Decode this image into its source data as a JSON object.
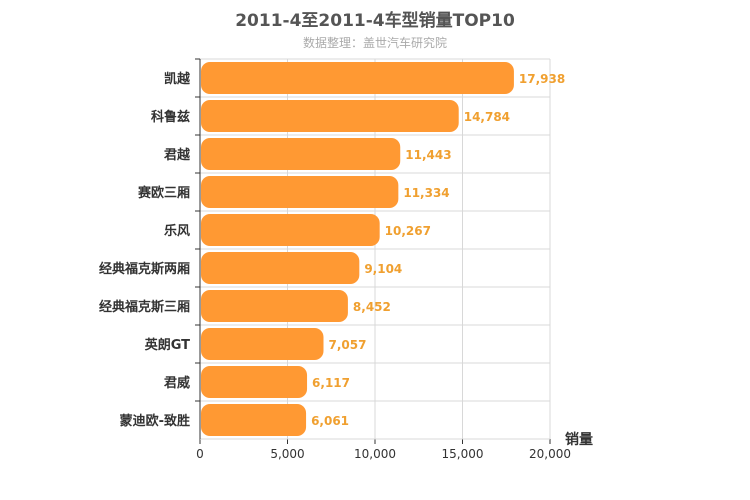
{
  "chart_data": {
    "type": "bar",
    "orientation": "horizontal",
    "title": "2011-4至2011-4车型销量TOP10",
    "subtitle": "数据整理：盖世汽车研究院",
    "categories": [
      "凯越",
      "科鲁兹",
      "君越",
      "赛欧三厢",
      "乐风",
      "经典福克斯两厢",
      "经典福克斯三厢",
      "英朗GT",
      "君威",
      "蒙迪欧-致胜"
    ],
    "values": [
      17938,
      14784,
      11443,
      11334,
      10267,
      9104,
      8452,
      7057,
      6117,
      6061
    ],
    "value_labels": [
      "17,938",
      "14,784",
      "11,443",
      "11,334",
      "10,267",
      "9,104",
      "8,452",
      "7,057",
      "6,117",
      "6,061"
    ],
    "value_axis_label": "销量",
    "xlim": [
      0,
      20000
    ],
    "xticks": [
      0,
      5000,
      10000,
      15000,
      20000
    ],
    "xtick_labels": [
      "0",
      "5,000",
      "10,000",
      "15,000",
      "20,000"
    ],
    "grid": true,
    "colors": {
      "bar": "#ff9933",
      "data_label": "#f0a030",
      "grid": "#d8d8d8",
      "axis": "#333333"
    }
  }
}
